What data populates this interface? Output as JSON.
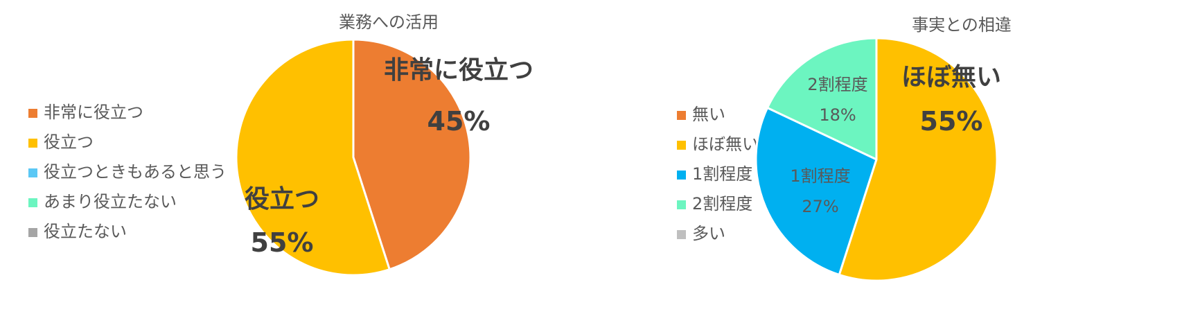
{
  "chart_data": [
    {
      "type": "pie",
      "title": "業務への活用",
      "legend_position": "left",
      "categories": [
        "非常に役立つ",
        "役立つ",
        "役立つときもあると思う",
        "あまり役立たない",
        "役立たない"
      ],
      "values": [
        45,
        55,
        0,
        0,
        0
      ],
      "value_labels": [
        "45%",
        "55%",
        "",
        "",
        ""
      ],
      "colors": [
        "#ED7D31",
        "#FFC000",
        "#5BC8F5",
        "#6CF5C0",
        "#A5A5A5"
      ],
      "start_angle_deg": 0,
      "direction": "clockwise"
    },
    {
      "type": "pie",
      "title": "事実との相違",
      "legend_position": "left",
      "categories": [
        "無い",
        "ほぼ無い",
        "1割程度",
        "2割程度",
        "多い"
      ],
      "values": [
        0,
        55,
        27,
        18,
        0
      ],
      "value_labels": [
        "",
        "55%",
        "27%",
        "18%",
        ""
      ],
      "colors": [
        "#ED7D31",
        "#FFC000",
        "#00B0F0",
        "#6CF5C0",
        "#BFBFBF"
      ],
      "start_angle_deg": 0,
      "direction": "clockwise"
    }
  ]
}
